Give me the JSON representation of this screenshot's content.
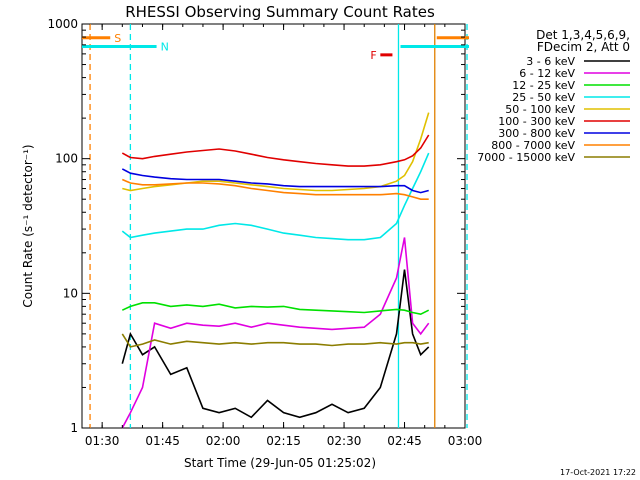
{
  "chart_data": {
    "type": "line",
    "title": "RHESSI Observing Summary Count Rates",
    "xlabel": "Start Time (29-Jun-05 01:25:02)",
    "ylabel": "Count Rate (s⁻¹ detector⁻¹)",
    "yscale": "log",
    "ylim": [
      1,
      1000
    ],
    "xlim_minutes": [
      0,
      95
    ],
    "x_ticks": [
      {
        "t": 5,
        "label": "01:30"
      },
      {
        "t": 20,
        "label": "01:45"
      },
      {
        "t": 35,
        "label": "02:00"
      },
      {
        "t": 50,
        "label": "02:15"
      },
      {
        "t": 65,
        "label": "02:30"
      },
      {
        "t": 80,
        "label": "02:45"
      },
      {
        "t": 95,
        "label": "03:00"
      }
    ],
    "y_ticks": [
      {
        "v": 1,
        "label": "1"
      },
      {
        "v": 10,
        "label": "10"
      },
      {
        "v": 100,
        "label": "100"
      },
      {
        "v": 1000,
        "label": "1000"
      }
    ],
    "legend_header": [
      "Det 1,3,4,5,6,9,",
      "FDecim 2, Att 0"
    ],
    "x_minutes": [
      10,
      12,
      15,
      18,
      22,
      26,
      30,
      34,
      38,
      42,
      46,
      50,
      54,
      58,
      62,
      66,
      70,
      74,
      78,
      80,
      82,
      84,
      86
    ],
    "series": [
      {
        "name": "3 - 6 keV",
        "color": "#000000",
        "values": [
          3,
          5,
          3.5,
          4,
          2.5,
          2.8,
          1.4,
          1.3,
          1.4,
          1.2,
          1.6,
          1.3,
          1.2,
          1.3,
          1.5,
          1.3,
          1.4,
          2,
          5,
          15,
          5,
          3.5,
          4
        ]
      },
      {
        "name": "6 - 12 keV",
        "color": "#e000e0",
        "values": [
          1,
          1.3,
          2,
          6,
          5.5,
          6,
          5.8,
          5.7,
          6,
          5.6,
          6,
          5.8,
          5.6,
          5.5,
          5.4,
          5.5,
          5.6,
          7,
          13,
          26,
          6,
          5,
          6
        ]
      },
      {
        "name": "12 - 25 keV",
        "color": "#00e000",
        "values": [
          7.5,
          8,
          8.5,
          8.5,
          8,
          8.2,
          8,
          8.3,
          7.8,
          8,
          7.9,
          8,
          7.6,
          7.5,
          7.4,
          7.3,
          7.2,
          7.4,
          7.6,
          7.5,
          7.2,
          7,
          7.5
        ]
      },
      {
        "name": "25 - 50 keV",
        "color": "#00e8e8",
        "values": [
          29,
          26,
          27,
          28,
          29,
          30,
          30,
          32,
          33,
          32,
          30,
          28,
          27,
          26,
          25.5,
          25,
          25,
          26,
          33,
          45,
          60,
          80,
          110
        ]
      },
      {
        "name": "50 - 100 keV",
        "color": "#e0c000",
        "values": [
          60,
          58,
          60,
          62,
          64,
          66,
          68,
          68,
          66,
          64,
          62,
          60,
          59,
          58,
          58,
          59,
          60,
          62,
          68,
          75,
          95,
          140,
          220
        ]
      },
      {
        "name": "100 - 300 keV",
        "color": "#e00000",
        "values": [
          110,
          102,
          100,
          104,
          108,
          112,
          115,
          118,
          114,
          108,
          102,
          98,
          95,
          92,
          90,
          88,
          88,
          90,
          95,
          98,
          105,
          120,
          150
        ]
      },
      {
        "name": "300 - 800 keV",
        "color": "#0000e0",
        "values": [
          84,
          78,
          75,
          73,
          71,
          70,
          70,
          70,
          68,
          66,
          65,
          63,
          62,
          62,
          62,
          62,
          62,
          62,
          63,
          63,
          58,
          56,
          58
        ]
      },
      {
        "name": "800 - 7000 keV",
        "color": "#ff8000",
        "values": [
          70,
          66,
          64,
          64,
          65,
          66,
          66,
          65,
          63,
          60,
          58,
          56,
          55,
          54,
          54,
          54,
          54,
          54,
          55,
          54,
          52,
          50,
          50
        ]
      },
      {
        "name": "7000 - 15000 keV",
        "color": "#8b7d00",
        "values": [
          5,
          4,
          4.2,
          4.5,
          4.2,
          4.4,
          4.3,
          4.2,
          4.3,
          4.2,
          4.3,
          4.3,
          4.2,
          4.2,
          4.1,
          4.2,
          4.2,
          4.3,
          4.2,
          4.3,
          4.3,
          4.2,
          4.3
        ]
      }
    ],
    "vertical_markers": [
      {
        "t": 2,
        "color": "#ff8000",
        "style": "dashed"
      },
      {
        "t": 12,
        "color": "#00e8e8",
        "style": "dashed"
      },
      {
        "t": 78.5,
        "color": "#00e8e8",
        "style": "solid"
      },
      {
        "t": 87.5,
        "color": "#e08000",
        "style": "solid"
      },
      {
        "t": 95.5,
        "color": "#00e8e8",
        "style": "dashed"
      }
    ],
    "flag_bars": [
      {
        "label": "S",
        "color": "#ff8000",
        "t_start": 0,
        "t_end": 7,
        "value": 790
      },
      {
        "label": "",
        "color": "#ff8000",
        "t_start": 88,
        "t_end": 96,
        "value": 790
      },
      {
        "label": "N",
        "color": "#00e8e8",
        "t_start": 0,
        "t_end": 18.5,
        "value": 680
      },
      {
        "label": "",
        "color": "#00e8e8",
        "t_start": 79,
        "t_end": 96,
        "value": 680
      },
      {
        "label": "F",
        "color": "#e00000",
        "t_start": 74,
        "t_end": 77,
        "value": 590
      }
    ],
    "footer_date": "17-Oct-2021 17:22"
  }
}
